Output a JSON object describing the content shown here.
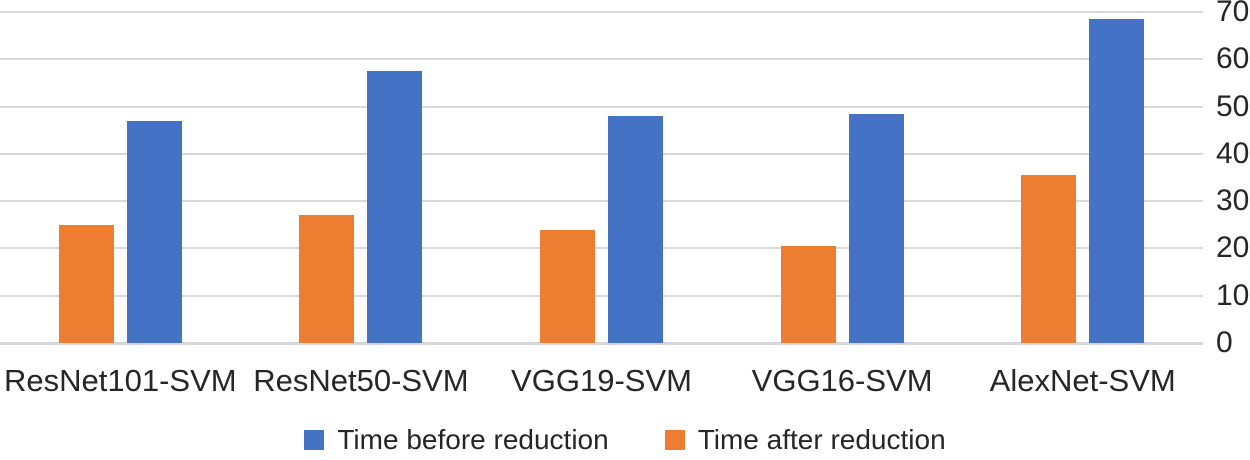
{
  "chart_data": {
    "type": "bar",
    "categories": [
      "ResNet101-SVM",
      "ResNet50-SVM",
      "VGG19-SVM",
      "VGG16-SVM",
      "AlexNet-SVM"
    ],
    "series": [
      {
        "name": "Time before reduction",
        "color": "#4472C4",
        "values": [
          47,
          57.5,
          48,
          48.5,
          68.5
        ]
      },
      {
        "name": "Time after reduction",
        "color": "#ED7D31",
        "values": [
          25,
          27,
          24,
          20.5,
          35.5
        ]
      }
    ],
    "title": "",
    "xlabel": "",
    "ylabel": "",
    "ylim": [
      0,
      70
    ],
    "yticks": [
      0,
      10,
      20,
      30,
      40,
      50,
      60,
      70
    ],
    "y_axis_side": "right",
    "grid": true,
    "gridline_color": "#D9D9D9",
    "text_color": "#262626",
    "background_color": "#FFFFFF",
    "legend_position": "bottom",
    "bar_draw_order": [
      "Time after reduction",
      "Time before reduction"
    ]
  }
}
